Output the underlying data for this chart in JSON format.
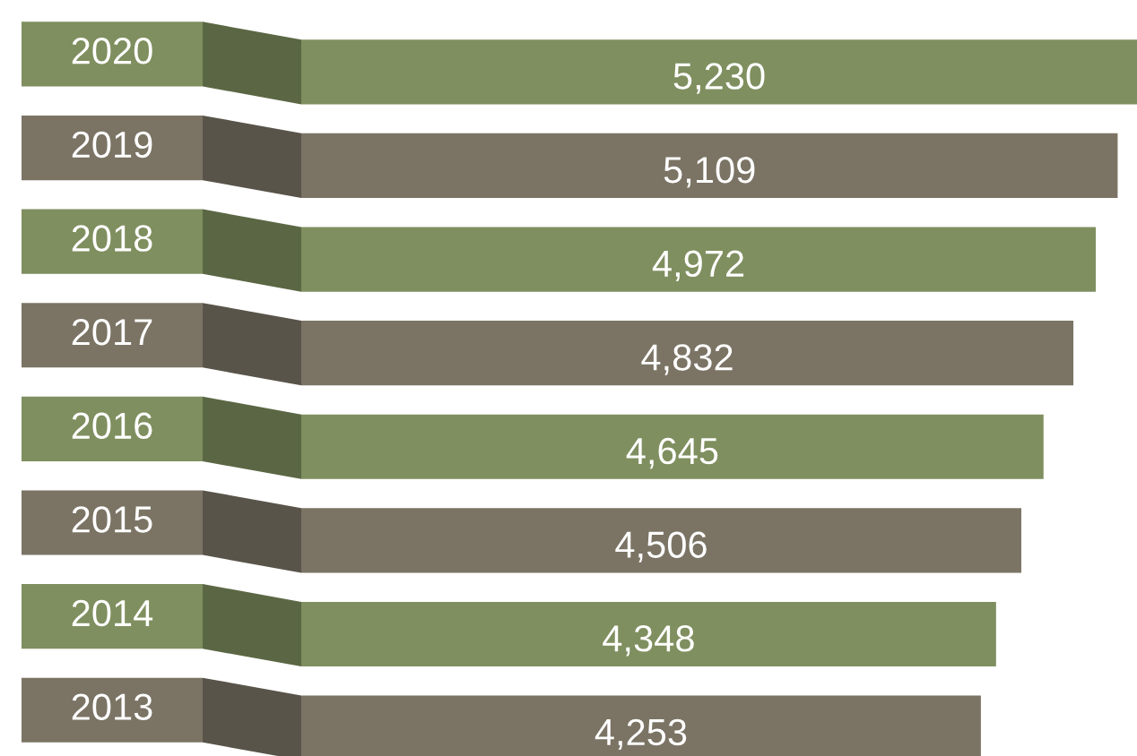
{
  "chart_data": {
    "type": "bar",
    "orientation": "horizontal",
    "categories": [
      "2020",
      "2019",
      "2018",
      "2017",
      "2016",
      "2015",
      "2014",
      "2013"
    ],
    "values": [
      5230,
      5109,
      4972,
      4832,
      4645,
      4506,
      4348,
      4253
    ],
    "colors": [
      "#7f8f5f",
      "#7b7465",
      "#7f8f5f",
      "#7b7465",
      "#7f8f5f",
      "#7b7465",
      "#7f8f5f",
      "#7b7465"
    ],
    "value_labels": [
      "5,230",
      "5,109",
      "4,972",
      "4,832",
      "4,645",
      "4,506",
      "4,348",
      "4,253"
    ]
  }
}
